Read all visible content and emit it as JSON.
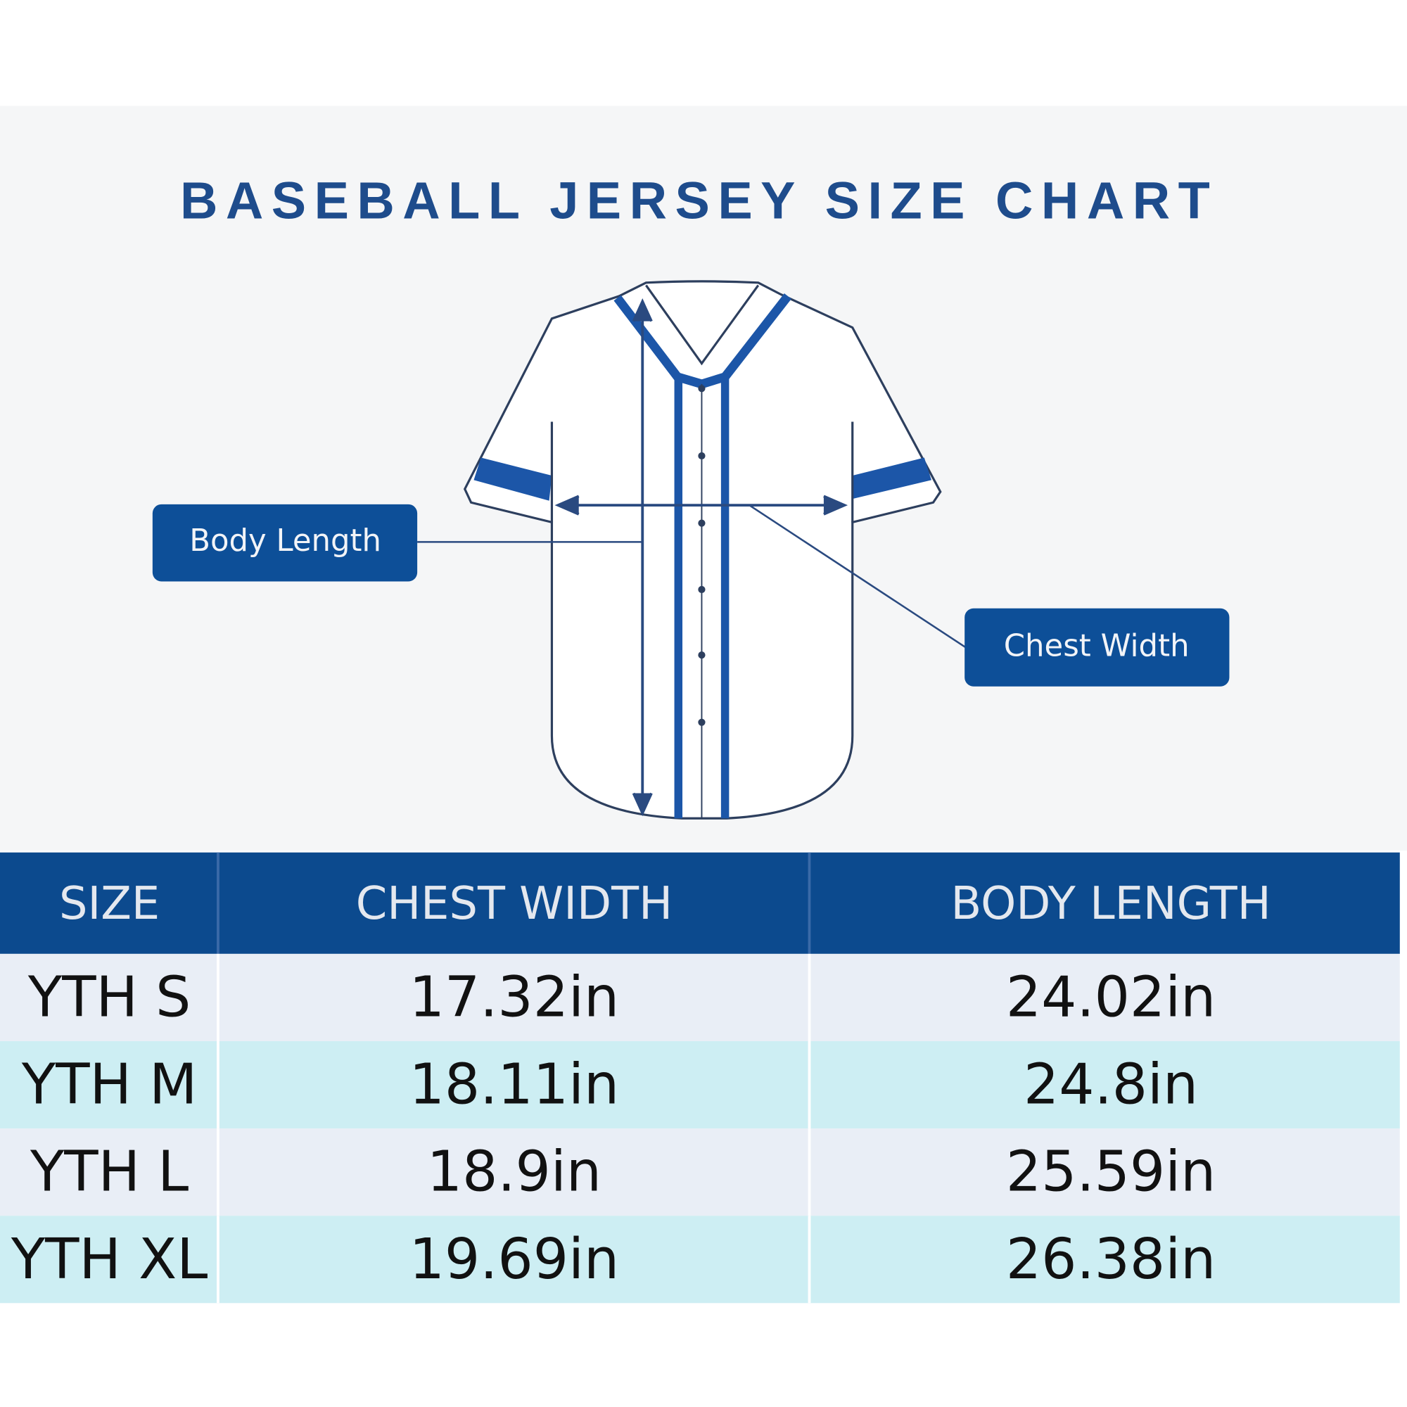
{
  "title": "BASEBALL JERSEY SIZE CHART",
  "diagram": {
    "labels": [
      "Body Length",
      "Chest Width"
    ]
  },
  "table": {
    "header": [
      "SIZE",
      "CHEST WIDTH",
      "BODY LENGTH"
    ],
    "rows": [
      [
        "YTH S",
        "17.32in",
        "24.02in"
      ],
      [
        "YTH M",
        "18.11in",
        "24.8in"
      ],
      [
        "YTH L",
        "18.9in",
        "25.59in"
      ],
      [
        "YTH XL",
        "19.69in",
        "26.38in"
      ]
    ]
  }
}
